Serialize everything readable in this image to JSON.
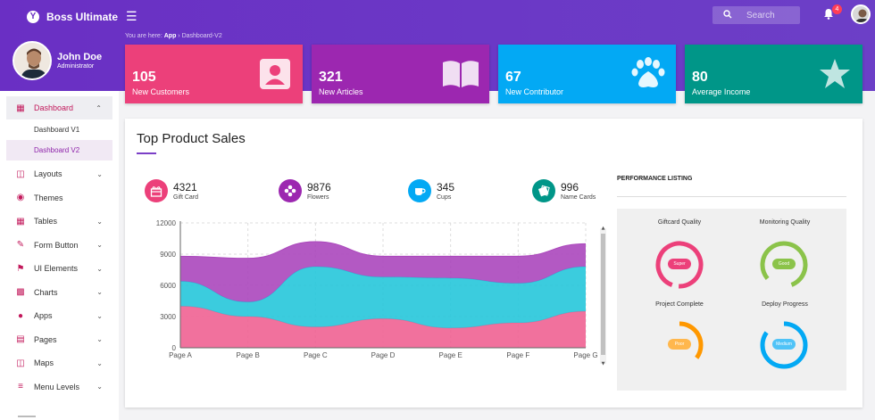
{
  "app": {
    "title": "Boss Ultimate",
    "logo_letter": "Y"
  },
  "header": {
    "search_placeholder": "Search",
    "notifications_count": "4"
  },
  "breadcrumb": {
    "prefix": "You are here:",
    "app": "App",
    "current": "Dashboard-V2"
  },
  "profile": {
    "name": "John Doe",
    "role": "Administrator"
  },
  "sidebar": {
    "items": [
      {
        "label": "Dashboard",
        "icon": "dashboard-icon"
      },
      {
        "label": "Layouts",
        "icon": "layouts-icon"
      },
      {
        "label": "Themes",
        "icon": "palette-icon"
      },
      {
        "label": "Tables",
        "icon": "table-icon"
      },
      {
        "label": "Form Button",
        "icon": "pencil-icon"
      },
      {
        "label": "UI Elements",
        "icon": "flag-icon"
      },
      {
        "label": "Charts",
        "icon": "chart-icon"
      },
      {
        "label": "Apps",
        "icon": "apps-icon"
      },
      {
        "label": "Pages",
        "icon": "pages-icon"
      },
      {
        "label": "Maps",
        "icon": "map-icon"
      },
      {
        "label": "Menu Levels",
        "icon": "menu-levels-icon"
      }
    ],
    "sub_items": [
      {
        "label": "Dashboard V1"
      },
      {
        "label": "Dashboard V2"
      }
    ]
  },
  "cards": [
    {
      "value": "105",
      "label": "New Customers",
      "color": "#ec407a",
      "icon": "contact-icon"
    },
    {
      "value": "321",
      "label": "New Articles",
      "color": "#9c27b0",
      "icon": "book-icon"
    },
    {
      "value": "67",
      "label": "New Contributor",
      "color": "#03a9f4",
      "icon": "paw-icon"
    },
    {
      "value": "80",
      "label": "Average Income",
      "color": "#009688",
      "icon": "star-icon"
    }
  ],
  "panel": {
    "title": "Top Product Sales",
    "performance_title": "PERFORMANCE LISTING"
  },
  "stats": [
    {
      "value": "4321",
      "label": "Gift Card",
      "color": "#ec407a",
      "icon": "gift-icon"
    },
    {
      "value": "9876",
      "label": "Flowers",
      "color": "#9c27b0",
      "icon": "flower-icon"
    },
    {
      "value": "345",
      "label": "Cups",
      "color": "#03a9f4",
      "icon": "cup-icon"
    },
    {
      "value": "996",
      "label": "Name Cards",
      "color": "#009688",
      "icon": "card-icon"
    }
  ],
  "gauges": [
    {
      "title": "Giftcard Quality",
      "pill": "Super",
      "color": "#ec407a",
      "value": 0.95
    },
    {
      "title": "Monitoring Quality",
      "pill": "Good",
      "color": "#8bc34a",
      "value": 0.8
    },
    {
      "title": "Project Complete",
      "pill": "Poor",
      "color": "#ff9800",
      "value": 0.35
    },
    {
      "title": "Deploy Progress",
      "pill": "Medium",
      "color": "#03a9f4",
      "value": 0.85
    }
  ],
  "chart_data": {
    "type": "area",
    "categories": [
      "Page A",
      "Page B",
      "Page C",
      "Page D",
      "Page E",
      "Page F",
      "Page G"
    ],
    "series": [
      {
        "values": [
          4000,
          3000,
          2000,
          2800,
          1900,
          2400,
          3500
        ],
        "color": "#f06292"
      },
      {
        "values": [
          2400,
          1400,
          5800,
          4000,
          4800,
          3800,
          4300
        ],
        "color": "#26c6da"
      },
      {
        "values": [
          2400,
          4200,
          2400,
          2000,
          2100,
          2600,
          2200
        ],
        "color": "#ab47bc"
      }
    ],
    "stacked": true,
    "yticks": [
      "0",
      "3000",
      "6000",
      "9000",
      "12000"
    ],
    "ylim": [
      0,
      12000
    ],
    "grid": true
  }
}
